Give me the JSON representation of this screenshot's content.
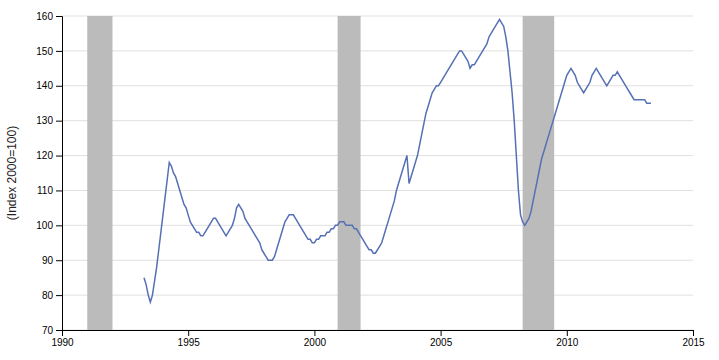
{
  "chart_data": {
    "type": "line",
    "ylabel": "(Index 2000=100)",
    "xlim": [
      1990,
      2015
    ],
    "ylim": [
      70,
      160
    ],
    "xticks": [
      1990,
      1995,
      2000,
      2005,
      2010,
      2015
    ],
    "yticks": [
      70,
      80,
      90,
      100,
      110,
      120,
      130,
      140,
      150,
      160
    ],
    "grid": true,
    "color": "#5570b4",
    "bands": {
      "color": "#bbbbbb",
      "ranges": [
        [
          1991.0,
          1992.0
        ],
        [
          2000.92,
          2001.83
        ],
        [
          2008.25,
          2009.5
        ]
      ]
    },
    "x": [
      1993.25,
      1993.3333333333333,
      1993.4166666666667,
      1993.5,
      1993.5833333333333,
      1993.6666666666667,
      1993.75,
      1993.8333333333333,
      1993.9166666666667,
      1994,
      1994.0833333333333,
      1994.1666666666667,
      1994.25,
      1994.3333333333333,
      1994.4166666666667,
      1994.5,
      1994.5833333333333,
      1994.6666666666667,
      1994.75,
      1994.8333333333333,
      1994.9166666666667,
      1995,
      1995.0833333333333,
      1995.1666666666667,
      1995.25,
      1995.3333333333333,
      1995.4166666666667,
      1995.5,
      1995.5833333333333,
      1995.6666666666667,
      1995.75,
      1995.8333333333333,
      1995.9166666666667,
      1996,
      1996.0833333333333,
      1996.1666666666667,
      1996.25,
      1996.3333333333333,
      1996.4166666666667,
      1996.5,
      1996.5833333333333,
      1996.6666666666667,
      1996.75,
      1996.8333333333333,
      1996.9166666666667,
      1997,
      1997.0833333333333,
      1997.1666666666667,
      1997.25,
      1997.3333333333333,
      1997.4166666666667,
      1997.5,
      1997.5833333333333,
      1997.6666666666667,
      1997.75,
      1997.8333333333333,
      1997.9166666666667,
      1998,
      1998.0833333333333,
      1998.1666666666667,
      1998.25,
      1998.3333333333333,
      1998.4166666666667,
      1998.5,
      1998.5833333333333,
      1998.6666666666667,
      1998.75,
      1998.8333333333333,
      1998.9166666666667,
      1999,
      1999.0833333333333,
      1999.1666666666667,
      1999.25,
      1999.3333333333333,
      1999.4166666666667,
      1999.5,
      1999.5833333333333,
      1999.6666666666667,
      1999.75,
      1999.8333333333333,
      1999.9166666666667,
      2000,
      2000.0833333333333,
      2000.1666666666667,
      2000.25,
      2000.3333333333333,
      2000.4166666666667,
      2000.5,
      2000.5833333333333,
      2000.6666666666667,
      2000.75,
      2000.8333333333333,
      2000.9166666666667,
      2001,
      2001.0833333333333,
      2001.1666666666667,
      2001.25,
      2001.3333333333333,
      2001.4166666666667,
      2001.5,
      2001.5833333333333,
      2001.6666666666667,
      2001.75,
      2001.8333333333333,
      2001.9166666666667,
      2002,
      2002.0833333333333,
      2002.1666666666667,
      2002.25,
      2002.3333333333333,
      2002.4166666666667,
      2002.5,
      2002.5833333333333,
      2002.6666666666667,
      2002.75,
      2002.8333333333333,
      2002.9166666666667,
      2003,
      2003.0833333333333,
      2003.1666666666667,
      2003.25,
      2003.3333333333333,
      2003.4166666666667,
      2003.5,
      2003.5833333333333,
      2003.6666666666667,
      2003.75,
      2003.8333333333333,
      2003.9166666666667,
      2004,
      2004.0833333333333,
      2004.1666666666667,
      2004.25,
      2004.3333333333333,
      2004.4166666666667,
      2004.5,
      2004.5833333333333,
      2004.6666666666667,
      2004.75,
      2004.8333333333333,
      2004.9166666666667,
      2005,
      2005.0833333333333,
      2005.1666666666667,
      2005.25,
      2005.3333333333333,
      2005.4166666666667,
      2005.5,
      2005.5833333333333,
      2005.6666666666667,
      2005.75,
      2005.8333333333333,
      2005.9166666666667,
      2006,
      2006.0833333333333,
      2006.1666666666667,
      2006.25,
      2006.3333333333333,
      2006.4166666666667,
      2006.5,
      2006.5833333333333,
      2006.6666666666667,
      2006.75,
      2006.8333333333333,
      2006.9166666666667,
      2007,
      2007.0833333333333,
      2007.1666666666667,
      2007.25,
      2007.3333333333333,
      2007.4166666666667,
      2007.5,
      2007.5833333333333,
      2007.6666666666667,
      2007.75,
      2007.8333333333333,
      2007.9166666666667,
      2008,
      2008.0833333333333,
      2008.1666666666667,
      2008.25,
      2008.3333333333333,
      2008.4166666666667,
      2008.5,
      2008.5833333333333,
      2008.6666666666667,
      2008.75,
      2008.8333333333333,
      2008.9166666666667,
      2009,
      2009.0833333333333,
      2009.1666666666667,
      2009.25,
      2009.3333333333333,
      2009.4166666666667,
      2009.5,
      2009.5833333333333,
      2009.6666666666667,
      2009.75,
      2009.8333333333333,
      2009.9166666666667,
      2010,
      2010.0833333333333,
      2010.1666666666667,
      2010.25,
      2010.3333333333333,
      2010.4166666666667,
      2010.5,
      2010.5833333333333,
      2010.6666666666667,
      2010.75,
      2010.8333333333333,
      2010.9166666666667,
      2011,
      2011.0833333333333,
      2011.1666666666667,
      2011.25,
      2011.3333333333333,
      2011.4166666666667,
      2011.5,
      2011.5833333333333,
      2011.6666666666667,
      2011.75,
      2011.8333333333333,
      2011.9166666666667,
      2012,
      2012.0833333333333,
      2012.1666666666667,
      2012.25,
      2012.3333333333333,
      2012.4166666666667,
      2012.5,
      2012.5833333333333,
      2012.6666666666667,
      2012.75,
      2012.8333333333333,
      2012.9166666666667,
      2013,
      2013.0833333333333,
      2013.1666666666667,
      2013.25,
      2013.3333333333333
    ],
    "values": [
      85,
      83,
      80,
      78,
      80,
      84,
      88,
      93,
      98,
      103,
      108,
      113,
      118,
      117,
      115,
      114,
      112,
      110,
      108,
      106,
      105,
      103,
      101,
      100,
      99,
      98,
      98,
      97,
      97,
      98,
      99,
      100,
      101,
      102,
      102,
      101,
      100,
      99,
      98,
      97,
      98,
      99,
      100,
      102,
      105,
      106,
      105,
      104,
      102,
      101,
      100,
      99,
      98,
      97,
      96,
      95,
      93,
      92,
      91,
      90,
      90,
      90,
      91,
      93,
      95,
      97,
      99,
      101,
      102,
      103,
      103,
      103,
      102,
      101,
      100,
      99,
      98,
      97,
      96,
      96,
      95,
      95,
      96,
      96,
      97,
      97,
      97,
      98,
      98,
      99,
      99,
      100,
      100,
      101,
      101,
      101,
      100,
      100,
      100,
      100,
      99,
      99,
      98,
      97,
      96,
      95,
      94,
      93,
      93,
      92,
      92,
      93,
      94,
      95,
      97,
      99,
      101,
      103,
      105,
      107,
      110,
      112,
      114,
      116,
      118,
      120,
      112,
      114,
      116,
      118,
      120,
      123,
      126,
      129,
      132,
      134,
      136,
      138,
      139,
      140,
      140,
      141,
      142,
      143,
      144,
      145,
      146,
      147,
      148,
      149,
      150,
      150,
      149,
      148,
      147,
      145,
      146,
      146,
      147,
      148,
      149,
      150,
      151,
      152,
      154,
      155,
      156,
      157,
      158,
      159,
      158,
      157,
      154,
      150,
      144,
      138,
      130,
      120,
      110,
      103,
      101,
      100,
      101,
      102,
      104,
      107,
      110,
      113,
      116,
      119,
      121,
      123,
      125,
      127,
      129,
      131,
      133,
      135,
      137,
      139,
      141,
      143,
      144,
      145,
      144,
      143,
      141,
      140,
      139,
      138,
      139,
      140,
      141,
      143,
      144,
      145,
      144,
      143,
      142,
      141,
      140,
      141,
      142,
      143,
      143,
      144,
      143,
      142,
      141,
      140,
      139,
      138,
      137,
      136,
      136,
      136,
      136,
      136,
      136,
      135,
      135,
      135
    ]
  }
}
